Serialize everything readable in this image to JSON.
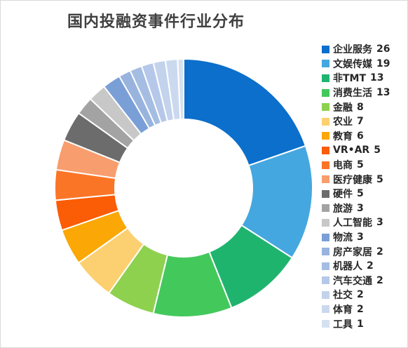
{
  "chart_data": {
    "type": "donut",
    "title": "国内投融资事件行业分布",
    "legend_position": "right",
    "series": [
      {
        "label": "企业服务",
        "value": 26,
        "color": "#0b6fcb"
      },
      {
        "label": "文娱传媒",
        "value": 19,
        "color": "#45a7df"
      },
      {
        "label": "非TMT",
        "value": 13,
        "color": "#1fb46e"
      },
      {
        "label": "消费生活",
        "value": 13,
        "color": "#43c85c"
      },
      {
        "label": "金融",
        "value": 8,
        "color": "#8ed14f"
      },
      {
        "label": "农业",
        "value": 7,
        "color": "#fcd071"
      },
      {
        "label": "教育",
        "value": 6,
        "color": "#fba705"
      },
      {
        "label": "VR•AR",
        "value": 5,
        "color": "#fb5c06"
      },
      {
        "label": "电商",
        "value": 5,
        "color": "#fb7527"
      },
      {
        "label": "医疗健康",
        "value": 5,
        "color": "#f89d6e"
      },
      {
        "label": "硬件",
        "value": 5,
        "color": "#6c6c6c"
      },
      {
        "label": "旅游",
        "value": 3,
        "color": "#a3a3a3"
      },
      {
        "label": "人工智能",
        "value": 3,
        "color": "#c8c8c8"
      },
      {
        "label": "物流",
        "value": 3,
        "color": "#7a9fd7"
      },
      {
        "label": "房产家居",
        "value": 2,
        "color": "#98b4de"
      },
      {
        "label": "机器人",
        "value": 2,
        "color": "#a5bde2"
      },
      {
        "label": "汽车交通",
        "value": 2,
        "color": "#b6c8e9"
      },
      {
        "label": "社交",
        "value": 2,
        "color": "#c3d3ec"
      },
      {
        "label": "体育",
        "value": 2,
        "color": "#cbd9ef"
      },
      {
        "label": "工具",
        "value": 1,
        "color": "#d5e1f1"
      }
    ]
  }
}
